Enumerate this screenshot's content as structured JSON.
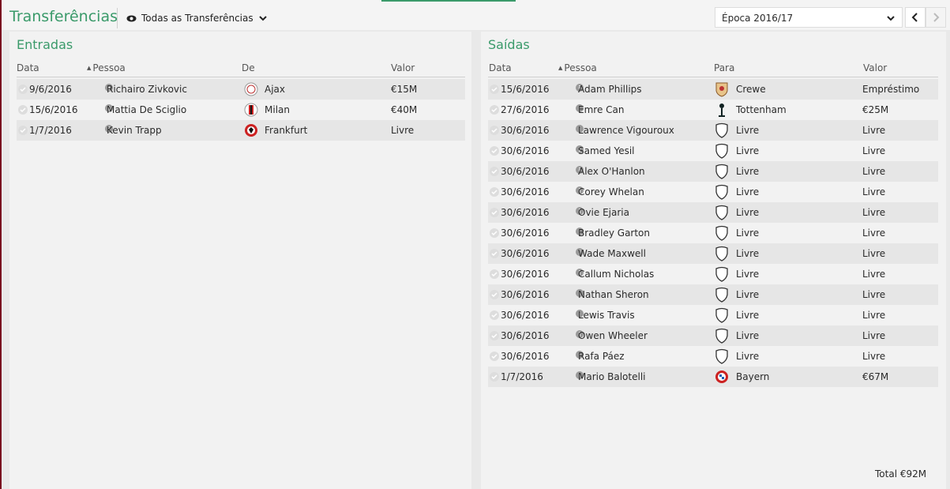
{
  "header": {
    "title": "Transferências",
    "filter": "Todas as Transferências",
    "season": "Época 2016/17"
  },
  "entradas": {
    "title": "Entradas",
    "columns": [
      "Data",
      "Pessoa",
      "De",
      "Valor"
    ],
    "rows": [
      [
        "9/6/2016",
        "Richairo Zivkovic",
        "Ajax",
        "€15M"
      ],
      [
        "15/6/2016",
        "Mattia De Sciglio",
        "Milan",
        "€40M"
      ],
      [
        "1/7/2016",
        "Kevin Trapp",
        "Frankfurt",
        "Livre"
      ]
    ]
  },
  "saidas": {
    "title": "Saídas",
    "columns": [
      "Data",
      "Pessoa",
      "Para",
      "Valor"
    ],
    "rows": [
      [
        "15/6/2016",
        "Adam Phillips",
        "Crewe",
        "Empréstimo"
      ],
      [
        "27/6/2016",
        "Emre Can",
        "Tottenham",
        "€25M"
      ],
      [
        "30/6/2016",
        "Lawrence Vigouroux",
        "Livre",
        "Livre"
      ],
      [
        "30/6/2016",
        "Samed Yesil",
        "Livre",
        "Livre"
      ],
      [
        "30/6/2016",
        "Alex O'Hanlon",
        "Livre",
        "Livre"
      ],
      [
        "30/6/2016",
        "Corey Whelan",
        "Livre",
        "Livre"
      ],
      [
        "30/6/2016",
        "Ovie Ejaria",
        "Livre",
        "Livre"
      ],
      [
        "30/6/2016",
        "Bradley Garton",
        "Livre",
        "Livre"
      ],
      [
        "30/6/2016",
        "Wade Maxwell",
        "Livre",
        "Livre"
      ],
      [
        "30/6/2016",
        "Callum Nicholas",
        "Livre",
        "Livre"
      ],
      [
        "30/6/2016",
        "Nathan Sheron",
        "Livre",
        "Livre"
      ],
      [
        "30/6/2016",
        "Lewis Travis",
        "Livre",
        "Livre"
      ],
      [
        "30/6/2016",
        "Owen Wheeler",
        "Livre",
        "Livre"
      ],
      [
        "30/6/2016",
        "Rafa Páez",
        "Livre",
        "Livre"
      ],
      [
        "1/7/2016",
        "Mario Balotelli",
        "Bayern",
        "€67M"
      ]
    ],
    "total": "Total €92M"
  }
}
